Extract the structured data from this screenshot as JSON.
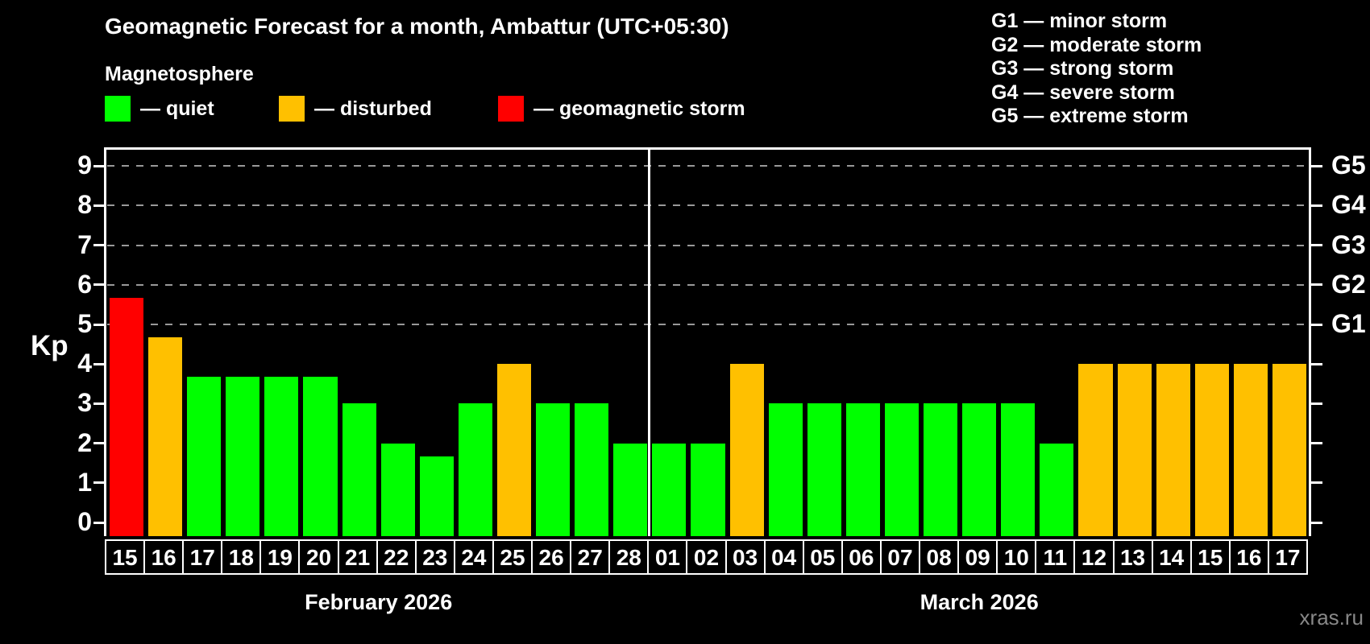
{
  "title": "Geomagnetic Forecast for a month, Ambattur (UTC+05:30)",
  "subtitle": "Magnetosphere",
  "legend": {
    "quiet": {
      "label": "— quiet",
      "color": "#00ff00"
    },
    "disturbed": {
      "label": "— disturbed",
      "color": "#ffc000"
    },
    "storm": {
      "label": "— geomagnetic storm",
      "color": "#ff0000"
    }
  },
  "g_scale_legend": [
    "G1 — minor storm",
    "G2 — moderate storm",
    "G3 — strong storm",
    "G4 — severe storm",
    "G5 — extreme storm"
  ],
  "watermark": "xras.ru",
  "chart_data": {
    "type": "bar",
    "title": "Geomagnetic Forecast for a month, Ambattur (UTC+05:30)",
    "subtitle": "Magnetosphere",
    "ylabel": "Kp",
    "ylim": [
      0,
      9.4
    ],
    "yticks": [
      0,
      1,
      2,
      3,
      4,
      5,
      6,
      7,
      8,
      9
    ],
    "grid": "horizontal dashed lines at Kp 5–9 only",
    "legend_position": "top",
    "right_axis_labels": [
      {
        "kp": 5,
        "label": "G1"
      },
      {
        "kp": 6,
        "label": "G2"
      },
      {
        "kp": 7,
        "label": "G3"
      },
      {
        "kp": 8,
        "label": "G4"
      },
      {
        "kp": 9,
        "label": "G5"
      }
    ],
    "series_colors": {
      "quiet": "#00ff00",
      "disturbed": "#ffc000",
      "storm": "#ff0000"
    },
    "months": [
      {
        "label": "February 2026",
        "days": 14
      },
      {
        "label": "March 2026",
        "days": 17
      }
    ],
    "bars": [
      {
        "month": "February 2026",
        "day": "15",
        "kp": 5.67,
        "status": "storm"
      },
      {
        "month": "February 2026",
        "day": "16",
        "kp": 4.67,
        "status": "disturbed"
      },
      {
        "month": "February 2026",
        "day": "17",
        "kp": 3.67,
        "status": "quiet"
      },
      {
        "month": "February 2026",
        "day": "18",
        "kp": 3.67,
        "status": "quiet"
      },
      {
        "month": "February 2026",
        "day": "19",
        "kp": 3.67,
        "status": "quiet"
      },
      {
        "month": "February 2026",
        "day": "20",
        "kp": 3.67,
        "status": "quiet"
      },
      {
        "month": "February 2026",
        "day": "21",
        "kp": 3,
        "status": "quiet"
      },
      {
        "month": "February 2026",
        "day": "22",
        "kp": 2,
        "status": "quiet"
      },
      {
        "month": "February 2026",
        "day": "23",
        "kp": 1.67,
        "status": "quiet"
      },
      {
        "month": "February 2026",
        "day": "24",
        "kp": 3,
        "status": "quiet"
      },
      {
        "month": "February 2026",
        "day": "25",
        "kp": 4,
        "status": "disturbed"
      },
      {
        "month": "February 2026",
        "day": "26",
        "kp": 3,
        "status": "quiet"
      },
      {
        "month": "February 2026",
        "day": "27",
        "kp": 3,
        "status": "quiet"
      },
      {
        "month": "February 2026",
        "day": "28",
        "kp": 2,
        "status": "quiet"
      },
      {
        "month": "March 2026",
        "day": "01",
        "kp": 2,
        "status": "quiet"
      },
      {
        "month": "March 2026",
        "day": "02",
        "kp": 2,
        "status": "quiet"
      },
      {
        "month": "March 2026",
        "day": "03",
        "kp": 4,
        "status": "disturbed"
      },
      {
        "month": "March 2026",
        "day": "04",
        "kp": 3,
        "status": "quiet"
      },
      {
        "month": "March 2026",
        "day": "05",
        "kp": 3,
        "status": "quiet"
      },
      {
        "month": "March 2026",
        "day": "06",
        "kp": 3,
        "status": "quiet"
      },
      {
        "month": "March 2026",
        "day": "07",
        "kp": 3,
        "status": "quiet"
      },
      {
        "month": "March 2026",
        "day": "08",
        "kp": 3,
        "status": "quiet"
      },
      {
        "month": "March 2026",
        "day": "09",
        "kp": 3,
        "status": "quiet"
      },
      {
        "month": "March 2026",
        "day": "10",
        "kp": 3,
        "status": "quiet"
      },
      {
        "month": "March 2026",
        "day": "11",
        "kp": 2,
        "status": "quiet"
      },
      {
        "month": "March 2026",
        "day": "12",
        "kp": 4,
        "status": "disturbed"
      },
      {
        "month": "March 2026",
        "day": "13",
        "kp": 4,
        "status": "disturbed"
      },
      {
        "month": "March 2026",
        "day": "14",
        "kp": 4,
        "status": "disturbed"
      },
      {
        "month": "March 2026",
        "day": "15",
        "kp": 4,
        "status": "disturbed"
      },
      {
        "month": "March 2026",
        "day": "16",
        "kp": 4,
        "status": "disturbed"
      },
      {
        "month": "March 2026",
        "day": "17",
        "kp": 4,
        "status": "disturbed"
      }
    ]
  }
}
